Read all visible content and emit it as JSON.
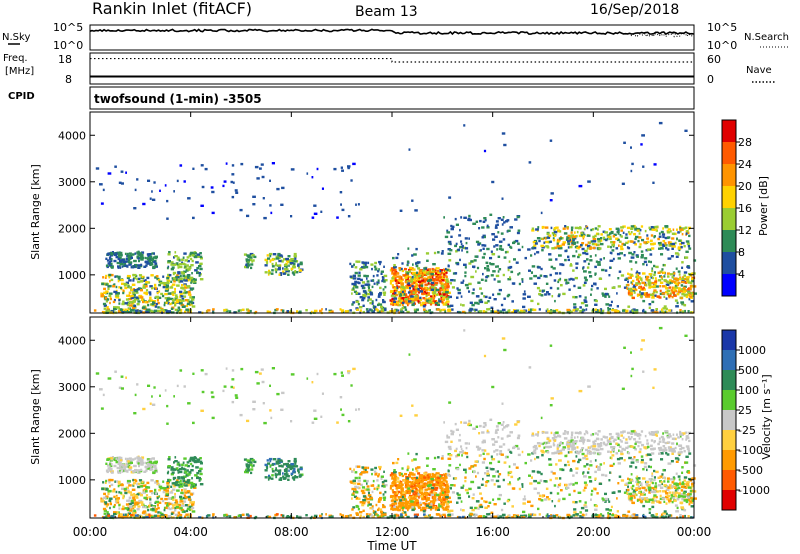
{
  "header": {
    "station": "Rankin Inlet (fitACF)",
    "beam": "Beam 13",
    "date": "16/Sep/2018",
    "mode": "twofsound (1-min) -3505"
  },
  "top_panels": {
    "nsky": {
      "left_label": "N.Sky",
      "left_ticks": [
        "10^5",
        "10^0"
      ],
      "right_ticks": [
        "10^5",
        "10^0"
      ],
      "right_label": "N.Search",
      "level": 0.78,
      "right_level": 0.4
    },
    "freq": {
      "left_label_1": "Freq.",
      "left_label_2": "[MHz]",
      "left_ticks": [
        "18",
        "8"
      ],
      "right_ticks": [
        "60",
        "0"
      ],
      "right_label": "Nave",
      "cpid_label": "CPID",
      "freq_level_before": 0.82,
      "freq_level_after": 0.71,
      "freq_step_hour": 12,
      "nave_level": 0.05
    }
  },
  "xaxis": {
    "ticks": [
      "00:00",
      "04:00",
      "08:00",
      "12:00",
      "16:00",
      "20:00",
      "00:00"
    ],
    "label": "Time UT"
  },
  "chart_data": [
    {
      "type": "heatmap",
      "xlabel": "Time UT",
      "ylabel": "Slant Range [km]",
      "xlim": [
        0,
        24
      ],
      "ylim": [
        180,
        4500
      ],
      "yticks": [
        "1000",
        "2000",
        "3000",
        "4000"
      ],
      "colorbar_label": "Power [dB]",
      "colorbar_ticks": [
        "28",
        "24",
        "20",
        "16",
        "12",
        "8",
        "4"
      ],
      "colorbar_values": [
        28,
        24,
        20,
        16,
        12,
        8,
        4
      ],
      "colorbar_colors": [
        "#e00000",
        "#ff5a00",
        "#ff9400",
        "#ffd200",
        "#9acd32",
        "#2e8b57",
        "#1f4fa0",
        "#0000ff"
      ]
    },
    {
      "type": "heatmap",
      "xlabel": "Time UT",
      "ylabel": "Slant Range [km]",
      "xlim": [
        0,
        24
      ],
      "ylim": [
        180,
        4500
      ],
      "yticks": [
        "1000",
        "2000",
        "3000",
        "4000"
      ],
      "colorbar_label": "Velocity [m s⁻¹]",
      "colorbar_ticks": [
        "1000",
        "500",
        "100",
        "25",
        "-25",
        "-100",
        "-500",
        "-1000"
      ],
      "colorbar_values": [
        1000,
        500,
        100,
        25,
        -25,
        -100,
        -500,
        -1000
      ],
      "colorbar_colors": [
        "#1a37a8",
        "#2f6fb5",
        "#2e8b57",
        "#5acb2e",
        "#c8c8c8",
        "#ffd040",
        "#ff9a00",
        "#ff5a00",
        "#e00000"
      ]
    }
  ],
  "scatter_regions": [
    {
      "t0": 0.4,
      "t1": 4.1,
      "r0": 180,
      "r1": 1000,
      "n": 420,
      "pw": [
        6,
        22
      ],
      "v": [
        -200,
        150
      ]
    },
    {
      "t0": 0.6,
      "t1": 2.6,
      "r0": 1150,
      "r1": 1500,
      "n": 160,
      "pw": [
        5,
        12
      ],
      "v": [
        -30,
        40
      ]
    },
    {
      "t0": 3.0,
      "t1": 4.4,
      "r0": 850,
      "r1": 1500,
      "n": 110,
      "pw": [
        6,
        16
      ],
      "v": [
        30,
        300
      ]
    },
    {
      "t0": 6.1,
      "t1": 6.5,
      "r0": 1150,
      "r1": 1450,
      "n": 25,
      "pw": [
        6,
        14
      ],
      "v": [
        50,
        200
      ]
    },
    {
      "t0": 6.9,
      "t1": 8.4,
      "r0": 1000,
      "r1": 1450,
      "n": 110,
      "pw": [
        6,
        18
      ],
      "v": [
        50,
        600
      ]
    },
    {
      "t0": 10.3,
      "t1": 11.7,
      "r0": 180,
      "r1": 1300,
      "n": 150,
      "pw": [
        4,
        14
      ],
      "v": [
        -300,
        200
      ]
    },
    {
      "t0": 11.9,
      "t1": 14.2,
      "r0": 350,
      "r1": 1150,
      "n": 520,
      "pw": [
        14,
        30
      ],
      "v": [
        -600,
        -80
      ]
    },
    {
      "t0": 12.0,
      "t1": 24.0,
      "r0": 180,
      "r1": 1600,
      "n": 600,
      "pw": [
        4,
        14
      ],
      "v": [
        -150,
        200
      ]
    },
    {
      "t0": 14.0,
      "t1": 17.0,
      "r0": 1500,
      "r1": 2300,
      "n": 90,
      "pw": [
        4,
        10
      ],
      "v": [
        -30,
        30
      ]
    },
    {
      "t0": 17.5,
      "t1": 23.8,
      "r0": 1550,
      "r1": 2050,
      "n": 340,
      "pw": [
        6,
        22
      ],
      "v": [
        -30,
        30
      ]
    },
    {
      "t0": 21.3,
      "t1": 24.0,
      "r0": 500,
      "r1": 1050,
      "n": 200,
      "pw": [
        12,
        26
      ],
      "v": [
        -150,
        100
      ]
    },
    {
      "t0": 0.2,
      "t1": 10.8,
      "r0": 2200,
      "r1": 3400,
      "n": 90,
      "pw": [
        3,
        7
      ],
      "v": [
        -40,
        80
      ]
    },
    {
      "t0": 12.0,
      "t1": 24.0,
      "r0": 2300,
      "r1": 4300,
      "n": 30,
      "pw": [
        3,
        8
      ],
      "v": [
        -100,
        100
      ]
    },
    {
      "t0": 0.0,
      "t1": 24.0,
      "r0": 180,
      "r1": 260,
      "n": 260,
      "pw": [
        6,
        22
      ],
      "v": [
        -600,
        600
      ]
    }
  ]
}
